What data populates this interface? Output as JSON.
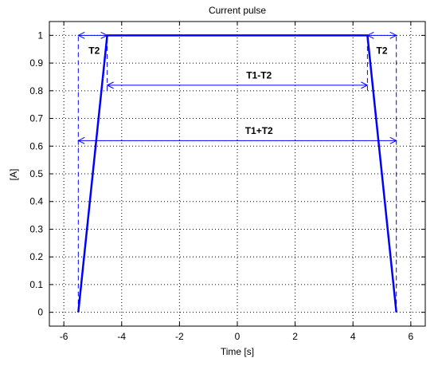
{
  "chart_data": {
    "type": "line",
    "title": "Current pulse",
    "xlabel": "Time [s]",
    "ylabel": "[A]",
    "xlim": [
      -6.5,
      6.5
    ],
    "ylim": [
      -0.05,
      1.05
    ],
    "xticks": [
      -6,
      -4,
      -2,
      0,
      2,
      4,
      6
    ],
    "yticks": [
      0,
      0.1,
      0.2,
      0.3,
      0.4,
      0.5,
      0.6,
      0.7,
      0.8,
      0.9,
      1
    ],
    "grid": true,
    "series": [
      {
        "x": [
          -5.5,
          -4.5,
          4.5,
          5.5
        ],
        "y": [
          0,
          1,
          1,
          0
        ],
        "color": "#0000ff"
      }
    ],
    "annotations": [
      {
        "label": "T2",
        "x1": -5.5,
        "x2": -4.5,
        "y": 1.0,
        "label_x": -4.95,
        "label_y": 0.945
      },
      {
        "label": "T2",
        "x1": 4.5,
        "x2": 5.5,
        "y": 1.0,
        "label_x": 5.0,
        "label_y": 0.945
      },
      {
        "label": "T1-T2",
        "x1": -4.5,
        "x2": 4.5,
        "y": 0.82,
        "label_x": 0.75,
        "label_y": 0.855
      },
      {
        "label": "T1+T2",
        "x1": -5.5,
        "x2": 5.5,
        "y": 0.62,
        "label_x": 0.75,
        "label_y": 0.655
      }
    ],
    "guide_lines": [
      {
        "x": -5.5,
        "y1": 0,
        "y2": 1.0
      },
      {
        "x": -4.5,
        "y1": 0.8,
        "y2": 1.0
      },
      {
        "x": 4.5,
        "y1": 0.8,
        "y2": 1.0
      },
      {
        "x": 5.5,
        "y1": 0,
        "y2": 1.0
      }
    ]
  }
}
